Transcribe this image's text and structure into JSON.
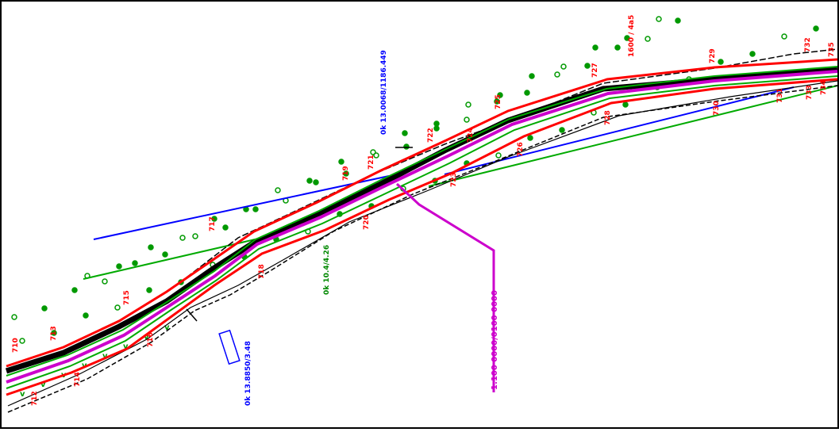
{
  "drawing": {
    "background": "#ffffff",
    "frame_color": "#000000",
    "colors": {
      "alignment_red": "#ff0000",
      "centerline_magenta": "#cc00cc",
      "offset_green": "#00aa00",
      "road_black": "#000000",
      "leader_blue": "#0000ff",
      "tree_green": "#009900",
      "label_blue": "#0000ff",
      "label_green": "#008800",
      "label_magenta": "#cc00cc",
      "label_red": "#ff0000"
    },
    "icons": {
      "tree": "circle-dot",
      "structure": "rotated-rectangle"
    }
  },
  "labels": {
    "blue_top": "0k 13.0068/1186.449",
    "blue_bottom": "0k 13.8850/3.48",
    "green_mid": "0k 10.4/4.26",
    "magenta_leader": "1:100 0000/0100 0000",
    "red_top": "1600 / 4a5"
  },
  "stations": [
    "710",
    "712",
    "713",
    "714",
    "715",
    "716",
    "717",
    "718",
    "719",
    "720",
    "721",
    "722",
    "723",
    "724",
    "725",
    "726",
    "727",
    "728",
    "729",
    "730",
    "731",
    "732",
    "733",
    "734",
    "735"
  ]
}
